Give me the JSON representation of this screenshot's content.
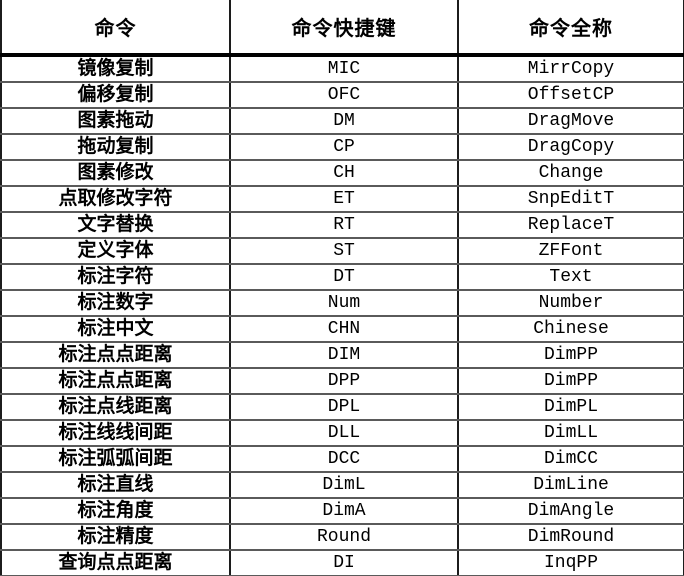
{
  "table": {
    "headers": {
      "command": "命令",
      "shortcut": "命令快捷键",
      "full_name": "命令全称"
    },
    "rows": [
      {
        "command": "镜像复制",
        "shortcut": "MIC",
        "full_name": "MirrCopy"
      },
      {
        "command": "偏移复制",
        "shortcut": "OFC",
        "full_name": "OffsetCP"
      },
      {
        "command": "图素拖动",
        "shortcut": "DM",
        "full_name": "DragMove"
      },
      {
        "command": "拖动复制",
        "shortcut": "CP",
        "full_name": "DragCopy"
      },
      {
        "command": "图素修改",
        "shortcut": "CH",
        "full_name": "Change"
      },
      {
        "command": "点取修改字符",
        "shortcut": "ET",
        "full_name": "SnpEditT"
      },
      {
        "command": "文字替换",
        "shortcut": "RT",
        "full_name": "ReplaceT"
      },
      {
        "command": "定义字体",
        "shortcut": "ST",
        "full_name": "ZFFont"
      },
      {
        "command": "标注字符",
        "shortcut": "DT",
        "full_name": "Text"
      },
      {
        "command": "标注数字",
        "shortcut": "Num",
        "full_name": "Number"
      },
      {
        "command": "标注中文",
        "shortcut": "CHN",
        "full_name": "Chinese"
      },
      {
        "command": "标注点点距离",
        "shortcut": "DIM",
        "full_name": "DimPP"
      },
      {
        "command": "标注点点距离",
        "shortcut": "DPP",
        "full_name": "DimPP"
      },
      {
        "command": "标注点线距离",
        "shortcut": "DPL",
        "full_name": "DimPL"
      },
      {
        "command": "标注线线间距",
        "shortcut": "DLL",
        "full_name": "DimLL"
      },
      {
        "command": "标注弧弧间距",
        "shortcut": "DCC",
        "full_name": "DimCC"
      },
      {
        "command": "标注直线",
        "shortcut": "DimL",
        "full_name": "DimLine"
      },
      {
        "command": "标注角度",
        "shortcut": "DimA",
        "full_name": "DimAngle"
      },
      {
        "command": "标注精度",
        "shortcut": "Round",
        "full_name": "DimRound"
      },
      {
        "command": "查询点点距离",
        "shortcut": "DI",
        "full_name": "InqPP"
      }
    ]
  },
  "colors": {
    "background": "#ffffff",
    "text": "#000000",
    "header_separator": "#000000",
    "row_separator": "#5a5a5a",
    "column_separator": "#1c1c1c"
  }
}
